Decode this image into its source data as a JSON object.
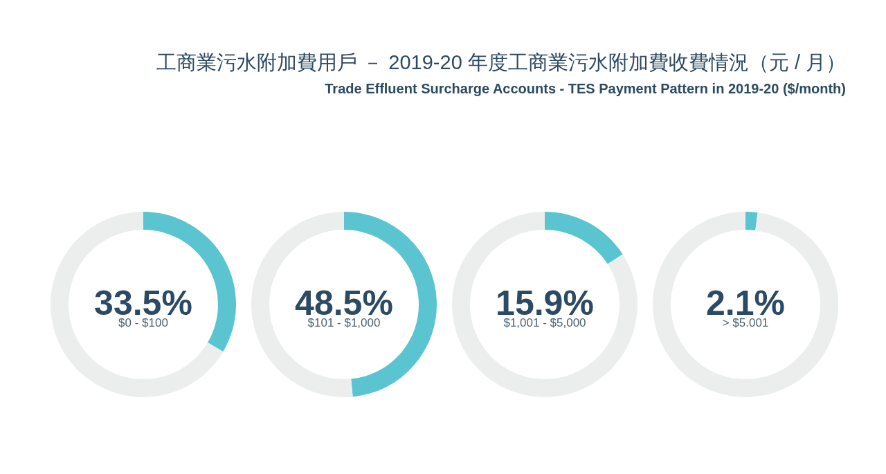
{
  "chart_data": [
    {
      "type": "other",
      "title": "工商業污水附加費用戶 － 2019-20 年度工商業污水附加費收費情況（元 / 月）",
      "subtitle": "Trade Effluent Surcharge Accounts - TES Payment Pattern in 2019-20 ($/month)"
    },
    {
      "type": "donut",
      "categories": [
        "$0 - $100",
        null
      ],
      "values": [
        33.5,
        66.5
      ],
      "colors": [
        "#5bc4d1",
        "#eceeee"
      ],
      "value_labels": [
        "33.5%",
        null
      ]
    },
    {
      "type": "donut",
      "categories": [
        "$101 - $1,000",
        null
      ],
      "values": [
        48.5,
        51.5
      ],
      "colors": [
        "#5bc4d1",
        "#eceeee"
      ],
      "value_labels": [
        "48.5%",
        null
      ]
    },
    {
      "type": "donut",
      "categories": [
        "$1,001 - $5,000",
        null
      ],
      "values": [
        15.9,
        84.1
      ],
      "colors": [
        "#5bc4d1",
        "#eceeee"
      ],
      "value_labels": [
        "15.9%",
        null
      ]
    },
    {
      "type": "donut",
      "categories": [
        "> $5.001",
        null
      ],
      "values": [
        2.1,
        97.9
      ],
      "colors": [
        "#5bc4d1",
        "#eceeee"
      ],
      "value_labels": [
        "2.1%",
        null
      ]
    }
  ]
}
